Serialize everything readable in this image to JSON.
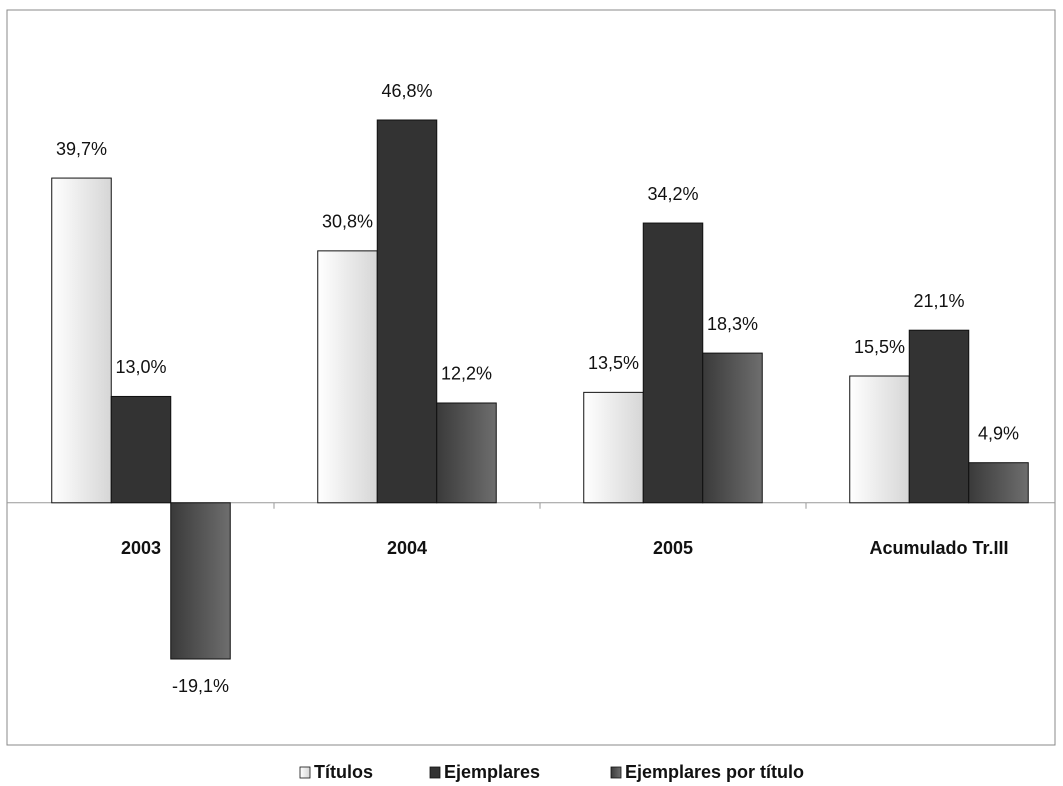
{
  "chart_data": {
    "type": "bar",
    "categories": [
      "2003",
      "2004",
      "2005",
      "Acumulado Tr.III"
    ],
    "series": [
      {
        "name": "Títulos",
        "color": "#d6d6d6",
        "values": [
          39.7,
          30.8,
          13.5,
          15.5
        ],
        "value_labels": [
          "39,7%",
          "30,8%",
          "13,5%",
          "15,5%"
        ]
      },
      {
        "name": "Ejemplares",
        "color": "#333333",
        "values": [
          13.0,
          46.8,
          34.2,
          21.1
        ],
        "value_labels": [
          "13,0%",
          "46,8%",
          "34,2%",
          "21,1%"
        ]
      },
      {
        "name": "Ejemplares por título",
        "color": "#6e6e6e",
        "values": [
          -19.1,
          12.2,
          18.3,
          4.9
        ],
        "value_labels": [
          "-19,1%",
          "12,2%",
          "18,3%",
          "4,9%"
        ]
      }
    ]
  }
}
